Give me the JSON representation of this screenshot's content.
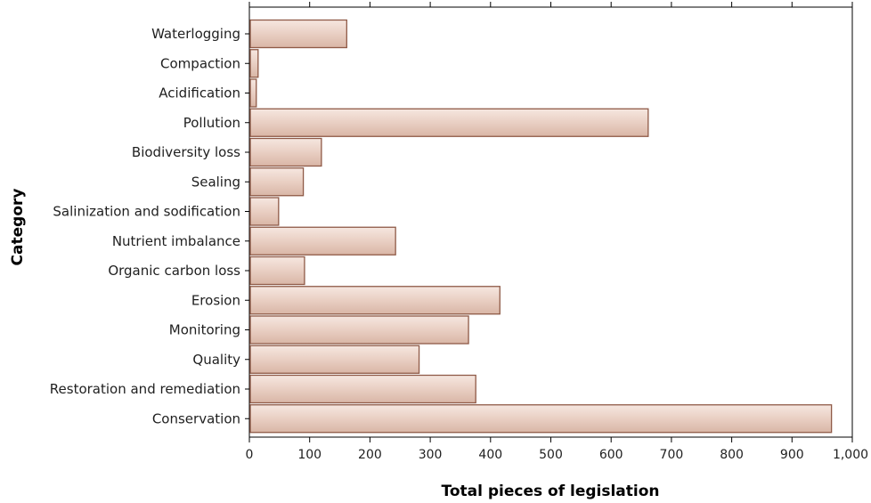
{
  "chart_data": {
    "type": "bar",
    "orientation": "horizontal",
    "xlabel": "Total pieces of legislation",
    "ylabel": "Category",
    "xlim": [
      0,
      1000
    ],
    "xticks": [
      0,
      100,
      200,
      300,
      400,
      500,
      600,
      700,
      800,
      900,
      1000
    ],
    "xtick_labels": [
      "0",
      "100",
      "200",
      "300",
      "400",
      "500",
      "600",
      "700",
      "800",
      "900",
      "1,000"
    ],
    "grid": false,
    "bar_fill": "#ead1c6",
    "bar_outline": "#8f5a47",
    "categories": [
      "Waterlogging",
      "Compaction",
      "Acidification",
      "Pollution",
      "Biodiversity loss",
      "Sealing",
      "Salinization and sodification",
      "Nutrient imbalance",
      "Organic carbon loss",
      "Erosion",
      "Monitoring",
      "Quality",
      "Restoration and remediation",
      "Conservation"
    ],
    "values": [
      160,
      13,
      10,
      660,
      118,
      88,
      47,
      241,
      90,
      414,
      362,
      280,
      374,
      964
    ]
  }
}
